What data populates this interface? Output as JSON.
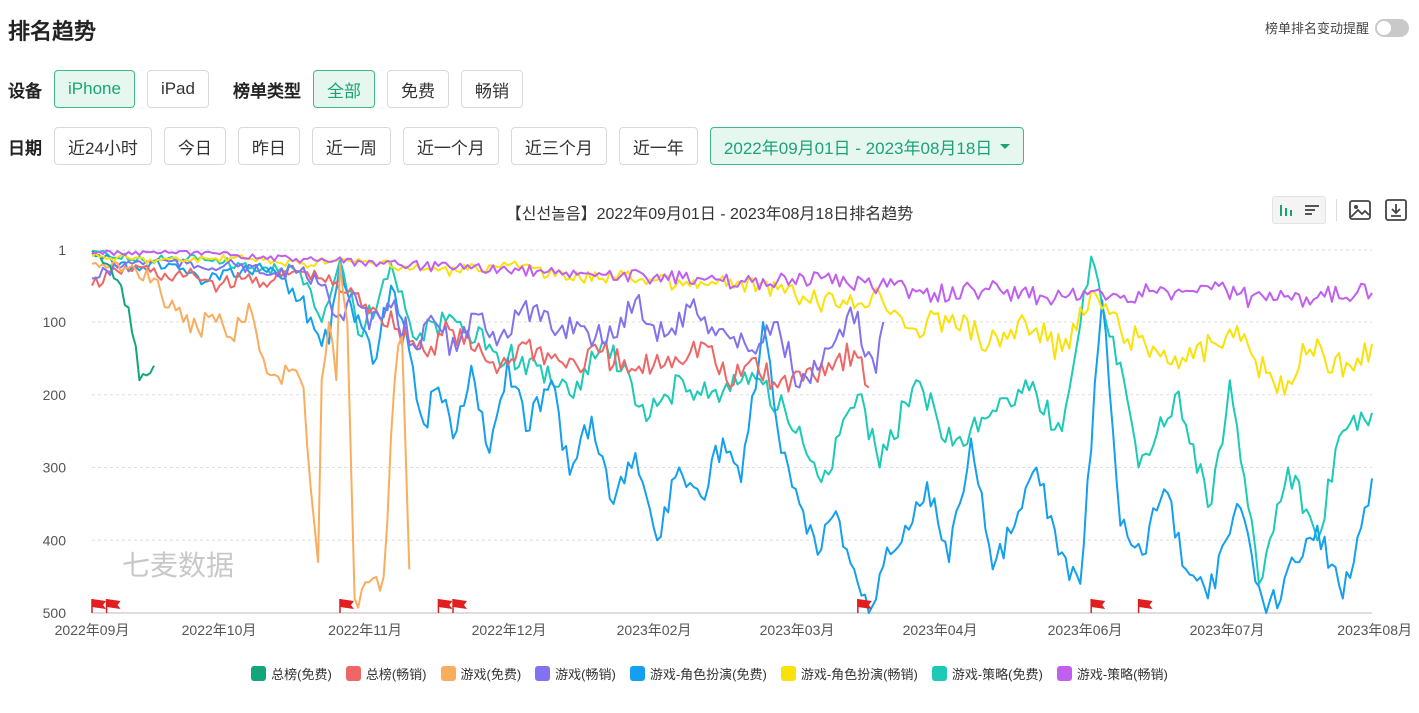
{
  "header": {
    "title": "排名趋势",
    "alert_label": "榜单排名变动提醒"
  },
  "device": {
    "label": "设备",
    "options": [
      "iPhone",
      "iPad"
    ],
    "selected": 0
  },
  "list_type": {
    "label": "榜单类型",
    "options": [
      "全部",
      "免费",
      "畅销"
    ],
    "selected": 0
  },
  "date": {
    "label": "日期",
    "options": [
      "近24小时",
      "今日",
      "昨日",
      "近一周",
      "近一个月",
      "近三个月",
      "近一年"
    ],
    "range": "2022年09月01日 - 2023年08月18日"
  },
  "watermark": "七麦数据",
  "colors": {
    "accent": "#1ba377",
    "series": [
      "#13a57c",
      "#ee6766",
      "#f9ad5e",
      "#8173ee",
      "#159ff0",
      "#f9e20a",
      "#1ccab6",
      "#c05ff0"
    ]
  },
  "icons": [
    "bar-chart-icon",
    "list-icon",
    "image-icon",
    "download-icon",
    "flag-icon"
  ],
  "chart_data": {
    "type": "line",
    "title": "【신선놀음】2022年09月01日 - 2023年08月18日排名趋势",
    "y_inverted": true,
    "ylim": [
      1,
      500
    ],
    "yticks": [
      "1",
      "100",
      "200",
      "300",
      "400",
      "500"
    ],
    "xticks": [
      "2022年09月",
      "2022年10月",
      "2022年11月",
      "2022年12月",
      "2023年02月",
      "2023年03月",
      "2023年04月",
      "2023年06月",
      "2023年07月",
      "2023年08月"
    ],
    "x_range": [
      "2022-09-01",
      "2023-08-18"
    ],
    "event_flags": [
      "2022-09-01",
      "2022-09-05",
      "2022-11-08",
      "2022-12-05",
      "2022-12-09",
      "2023-03-30",
      "2023-06-02",
      "2023-06-15"
    ],
    "series": [
      {
        "name": "总榜(免费)",
        "points": [
          [
            "2022-09-01",
            2
          ],
          [
            "2022-09-03",
            8
          ],
          [
            "2022-09-05",
            20
          ],
          [
            "2022-09-07",
            40
          ],
          [
            "2022-09-09",
            50
          ],
          [
            "2022-09-11",
            80
          ],
          [
            "2022-09-12",
            115
          ],
          [
            "2022-09-14",
            180
          ],
          [
            "2022-09-17",
            170
          ],
          [
            "2022-09-18",
            160
          ]
        ]
      },
      {
        "name": "总榜(畅销)",
        "points": [
          [
            "2022-09-01",
            50
          ],
          [
            "2022-09-08",
            30
          ],
          [
            "2022-09-15",
            25
          ],
          [
            "2022-09-22",
            40
          ],
          [
            "2022-09-29",
            35
          ],
          [
            "2022-10-06",
            50
          ],
          [
            "2022-10-13",
            40
          ],
          [
            "2022-10-20",
            45
          ],
          [
            "2022-10-27",
            30
          ],
          [
            "2022-11-03",
            40
          ],
          [
            "2022-11-10",
            60
          ],
          [
            "2022-11-17",
            80
          ],
          [
            "2022-11-24",
            110
          ],
          [
            "2022-12-01",
            140
          ],
          [
            "2022-12-08",
            110
          ],
          [
            "2022-12-15",
            140
          ],
          [
            "2022-12-22",
            160
          ],
          [
            "2022-12-29",
            130
          ],
          [
            "2023-01-05",
            150
          ],
          [
            "2023-01-12",
            160
          ],
          [
            "2023-01-19",
            140
          ],
          [
            "2023-01-26",
            170
          ],
          [
            "2023-02-02",
            160
          ],
          [
            "2023-02-16",
            130
          ],
          [
            "2023-02-23",
            190
          ],
          [
            "2023-03-01",
            150
          ],
          [
            "2023-03-08",
            190
          ],
          [
            "2023-03-29",
            140
          ],
          [
            "2023-04-02",
            190
          ]
        ]
      },
      {
        "name": "游戏(免费)",
        "points": [
          [
            "2022-09-01",
            20
          ],
          [
            "2022-09-10",
            25
          ],
          [
            "2022-09-18",
            40
          ],
          [
            "2022-09-22",
            80
          ],
          [
            "2022-09-26",
            100
          ],
          [
            "2022-09-30",
            110
          ],
          [
            "2022-10-04",
            90
          ],
          [
            "2022-10-08",
            120
          ],
          [
            "2022-10-12",
            100
          ],
          [
            "2022-10-15",
            90
          ],
          [
            "2022-10-18",
            150
          ],
          [
            "2022-10-22",
            175
          ],
          [
            "2022-10-26",
            165
          ],
          [
            "2022-10-29",
            190
          ],
          [
            "2022-11-01",
            380
          ],
          [
            "2022-11-02",
            430
          ],
          [
            "2022-11-03",
            180
          ],
          [
            "2022-11-05",
            100
          ],
          [
            "2022-11-07",
            180
          ],
          [
            "2022-11-08",
            20
          ],
          [
            "2022-11-10",
            100
          ],
          [
            "2022-11-12",
            480
          ],
          [
            "2022-11-20",
            450
          ],
          [
            "2022-11-23",
            180
          ],
          [
            "2022-11-25",
            120
          ],
          [
            "2022-11-27",
            440
          ]
        ]
      },
      {
        "name": "游戏(畅销)",
        "points": [
          [
            "2022-09-01",
            40
          ],
          [
            "2022-09-10",
            20
          ],
          [
            "2022-09-20",
            15
          ],
          [
            "2022-10-01",
            25
          ],
          [
            "2022-10-10",
            20
          ],
          [
            "2022-10-20",
            35
          ],
          [
            "2022-10-28",
            30
          ],
          [
            "2022-11-03",
            50
          ],
          [
            "2022-11-08",
            90
          ],
          [
            "2022-11-12",
            60
          ],
          [
            "2022-11-16",
            110
          ],
          [
            "2022-11-22",
            80
          ],
          [
            "2022-11-28",
            130
          ],
          [
            "2022-12-04",
            100
          ],
          [
            "2022-12-10",
            140
          ],
          [
            "2022-12-16",
            90
          ],
          [
            "2022-12-22",
            120
          ],
          [
            "2022-12-28",
            80
          ],
          [
            "2023-01-05",
            110
          ],
          [
            "2023-01-12",
            100
          ],
          [
            "2023-01-20",
            130
          ],
          [
            "2023-01-28",
            70
          ],
          [
            "2023-02-05",
            120
          ],
          [
            "2023-02-12",
            80
          ],
          [
            "2023-02-20",
            110
          ],
          [
            "2023-02-28",
            140
          ],
          [
            "2023-03-08",
            100
          ],
          [
            "2023-03-14",
            190
          ],
          [
            "2023-03-20",
            160
          ],
          [
            "2023-03-26",
            120
          ],
          [
            "2023-03-28",
            80
          ],
          [
            "2023-04-04",
            170
          ],
          [
            "2023-04-06",
            100
          ]
        ]
      },
      {
        "name": "游戏-角色扮演(免费)",
        "points": [
          [
            "2022-09-01",
            5
          ],
          [
            "2022-09-12",
            25
          ],
          [
            "2022-09-22",
            20
          ],
          [
            "2022-10-02",
            45
          ],
          [
            "2022-10-12",
            30
          ],
          [
            "2022-10-20",
            25
          ],
          [
            "2022-10-28",
            70
          ],
          [
            "2022-11-05",
            130
          ],
          [
            "2022-11-08",
            20
          ],
          [
            "2022-11-12",
            100
          ],
          [
            "2022-11-18",
            150
          ],
          [
            "2022-11-22",
            50
          ],
          [
            "2022-11-27",
            140
          ],
          [
            "2022-12-01",
            240
          ],
          [
            "2022-12-05",
            190
          ],
          [
            "2022-12-09",
            260
          ],
          [
            "2022-12-14",
            160
          ],
          [
            "2022-12-19",
            280
          ],
          [
            "2022-12-24",
            150
          ],
          [
            "2022-12-29",
            250
          ],
          [
            "2023-01-05",
            180
          ],
          [
            "2023-01-10",
            310
          ],
          [
            "2023-01-16",
            230
          ],
          [
            "2023-01-22",
            350
          ],
          [
            "2023-01-28",
            280
          ],
          [
            "2023-02-03",
            400
          ],
          [
            "2023-02-09",
            300
          ],
          [
            "2023-02-15",
            340
          ],
          [
            "2023-02-21",
            260
          ],
          [
            "2023-02-26",
            320
          ],
          [
            "2023-03-04",
            100
          ],
          [
            "2023-03-09",
            280
          ],
          [
            "2023-03-14",
            350
          ],
          [
            "2023-03-19",
            420
          ],
          [
            "2023-03-24",
            360
          ],
          [
            "2023-03-29",
            440
          ],
          [
            "2023-04-02",
            500
          ],
          [
            "2023-04-07",
            410
          ],
          [
            "2023-04-12",
            380
          ],
          [
            "2023-04-18",
            320
          ],
          [
            "2023-04-24",
            430
          ],
          [
            "2023-04-30",
            260
          ],
          [
            "2023-05-06",
            440
          ],
          [
            "2023-05-12",
            380
          ],
          [
            "2023-05-18",
            300
          ],
          [
            "2023-05-24",
            420
          ],
          [
            "2023-05-30",
            460
          ],
          [
            "2023-06-05",
            70
          ],
          [
            "2023-06-10",
            380
          ],
          [
            "2023-06-16",
            420
          ],
          [
            "2023-06-22",
            330
          ],
          [
            "2023-06-28",
            440
          ],
          [
            "2023-07-04",
            480
          ],
          [
            "2023-07-12",
            350
          ],
          [
            "2023-07-20",
            500
          ],
          [
            "2023-07-28",
            430
          ],
          [
            "2023-08-03",
            380
          ],
          [
            "2023-08-10",
            480
          ],
          [
            "2023-08-18",
            315
          ]
        ]
      },
      {
        "name": "游戏-角色扮演(畅销)",
        "points": [
          [
            "2022-09-01",
            10
          ],
          [
            "2022-09-20",
            15
          ],
          [
            "2022-10-10",
            12
          ],
          [
            "2022-10-28",
            20
          ],
          [
            "2022-11-10",
            15
          ],
          [
            "2022-11-25",
            25
          ],
          [
            "2022-12-10",
            30
          ],
          [
            "2022-12-25",
            20
          ],
          [
            "2023-01-10",
            40
          ],
          [
            "2023-01-25",
            35
          ],
          [
            "2023-02-10",
            50
          ],
          [
            "2023-02-25",
            45
          ],
          [
            "2023-03-10",
            60
          ],
          [
            "2023-03-25",
            80
          ],
          [
            "2023-04-05",
            60
          ],
          [
            "2023-04-15",
            110
          ],
          [
            "2023-04-25",
            90
          ],
          [
            "2023-05-05",
            130
          ],
          [
            "2023-05-15",
            100
          ],
          [
            "2023-05-25",
            140
          ],
          [
            "2023-06-03",
            60
          ],
          [
            "2023-06-10",
            110
          ],
          [
            "2023-06-20",
            140
          ],
          [
            "2023-06-30",
            150
          ],
          [
            "2023-07-10",
            110
          ],
          [
            "2023-07-20",
            170
          ],
          [
            "2023-07-25",
            200
          ],
          [
            "2023-07-30",
            130
          ],
          [
            "2023-08-05",
            150
          ],
          [
            "2023-08-12",
            160
          ],
          [
            "2023-08-18",
            130
          ]
        ]
      },
      {
        "name": "游戏-策略(免费)",
        "points": [
          [
            "2022-09-01",
            3
          ],
          [
            "2022-09-15",
            15
          ],
          [
            "2022-10-01",
            10
          ],
          [
            "2022-10-15",
            25
          ],
          [
            "2022-10-28",
            30
          ],
          [
            "2022-11-03",
            100
          ],
          [
            "2022-11-08",
            15
          ],
          [
            "2022-11-14",
            120
          ],
          [
            "2022-11-22",
            20
          ],
          [
            "2022-11-28",
            120
          ],
          [
            "2022-12-10",
            100
          ],
          [
            "2022-12-20",
            140
          ],
          [
            "2023-01-01",
            160
          ],
          [
            "2023-01-10",
            200
          ],
          [
            "2023-01-20",
            130
          ],
          [
            "2023-02-01",
            230
          ],
          [
            "2023-02-10",
            180
          ],
          [
            "2023-02-20",
            210
          ],
          [
            "2023-03-01",
            170
          ],
          [
            "2023-03-10",
            220
          ],
          [
            "2023-03-20",
            320
          ],
          [
            "2023-03-30",
            200
          ],
          [
            "2023-04-05",
            300
          ],
          [
            "2023-04-15",
            180
          ],
          [
            "2023-04-25",
            270
          ],
          [
            "2023-05-05",
            230
          ],
          [
            "2023-05-15",
            180
          ],
          [
            "2023-05-25",
            250
          ],
          [
            "2023-06-02",
            10
          ],
          [
            "2023-06-08",
            120
          ],
          [
            "2023-06-15",
            300
          ],
          [
            "2023-06-25",
            200
          ],
          [
            "2023-07-05",
            350
          ],
          [
            "2023-07-10",
            180
          ],
          [
            "2023-07-18",
            460
          ],
          [
            "2023-07-26",
            300
          ],
          [
            "2023-08-03",
            400
          ],
          [
            "2023-08-10",
            250
          ],
          [
            "2023-08-18",
            225
          ]
        ]
      },
      {
        "name": "游戏-策略(畅销)",
        "points": [
          [
            "2022-09-01",
            5
          ],
          [
            "2022-09-20",
            5
          ],
          [
            "2022-10-10",
            8
          ],
          [
            "2022-11-01",
            15
          ],
          [
            "2022-11-20",
            20
          ],
          [
            "2022-12-10",
            25
          ],
          [
            "2023-01-01",
            30
          ],
          [
            "2023-01-20",
            35
          ],
          [
            "2023-02-10",
            40
          ],
          [
            "2023-03-01",
            45
          ],
          [
            "2023-03-20",
            40
          ],
          [
            "2023-04-05",
            50
          ],
          [
            "2023-04-20",
            60
          ],
          [
            "2023-05-05",
            55
          ],
          [
            "2023-05-20",
            65
          ],
          [
            "2023-06-05",
            60
          ],
          [
            "2023-06-20",
            60
          ],
          [
            "2023-07-05",
            55
          ],
          [
            "2023-07-20",
            70
          ],
          [
            "2023-08-05",
            65
          ],
          [
            "2023-08-18",
            60
          ]
        ]
      }
    ]
  }
}
